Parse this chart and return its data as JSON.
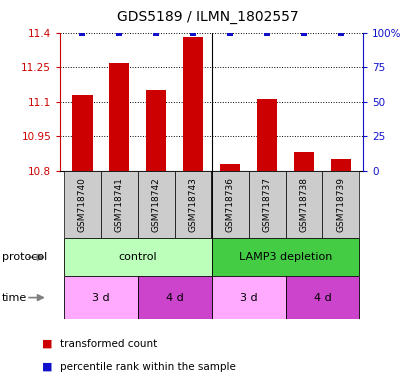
{
  "title": "GDS5189 / ILMN_1802557",
  "samples": [
    "GSM718740",
    "GSM718741",
    "GSM718742",
    "GSM718743",
    "GSM718736",
    "GSM718737",
    "GSM718738",
    "GSM718739"
  ],
  "red_values": [
    11.13,
    11.27,
    11.15,
    11.38,
    10.83,
    11.11,
    10.88,
    10.85
  ],
  "blue_values": [
    100,
    100,
    100,
    100,
    100,
    100,
    100,
    100
  ],
  "ylim_left": [
    10.8,
    11.4
  ],
  "ylim_right": [
    0,
    100
  ],
  "yticks_left": [
    10.8,
    10.95,
    11.1,
    11.25,
    11.4
  ],
  "yticks_right": [
    0,
    25,
    50,
    75,
    100
  ],
  "ytick_labels_left": [
    "10.8",
    "10.95",
    "11.1",
    "11.25",
    "11.4"
  ],
  "ytick_labels_right": [
    "0",
    "25",
    "50",
    "75",
    "100%"
  ],
  "bar_color": "#cc0000",
  "dot_color": "#1111cc",
  "protocol_groups": [
    {
      "label": "control",
      "start": 0,
      "end": 4,
      "color": "#bbffbb"
    },
    {
      "label": "LAMP3 depletion",
      "start": 4,
      "end": 8,
      "color": "#44cc44"
    }
  ],
  "time_groups": [
    {
      "label": "3 d",
      "start": 0,
      "end": 2,
      "color": "#ffaaff"
    },
    {
      "label": "4 d",
      "start": 2,
      "end": 4,
      "color": "#cc44cc"
    },
    {
      "label": "3 d",
      "start": 4,
      "end": 6,
      "color": "#ffaaff"
    },
    {
      "label": "4 d",
      "start": 6,
      "end": 8,
      "color": "#cc44cc"
    }
  ],
  "legend_items": [
    {
      "color": "#cc0000",
      "label": "transformed count"
    },
    {
      "color": "#1111cc",
      "label": "percentile rank within the sample"
    }
  ],
  "protocol_label": "protocol",
  "time_label": "time",
  "sample_box_color": "#cccccc",
  "background_color": "#ffffff"
}
